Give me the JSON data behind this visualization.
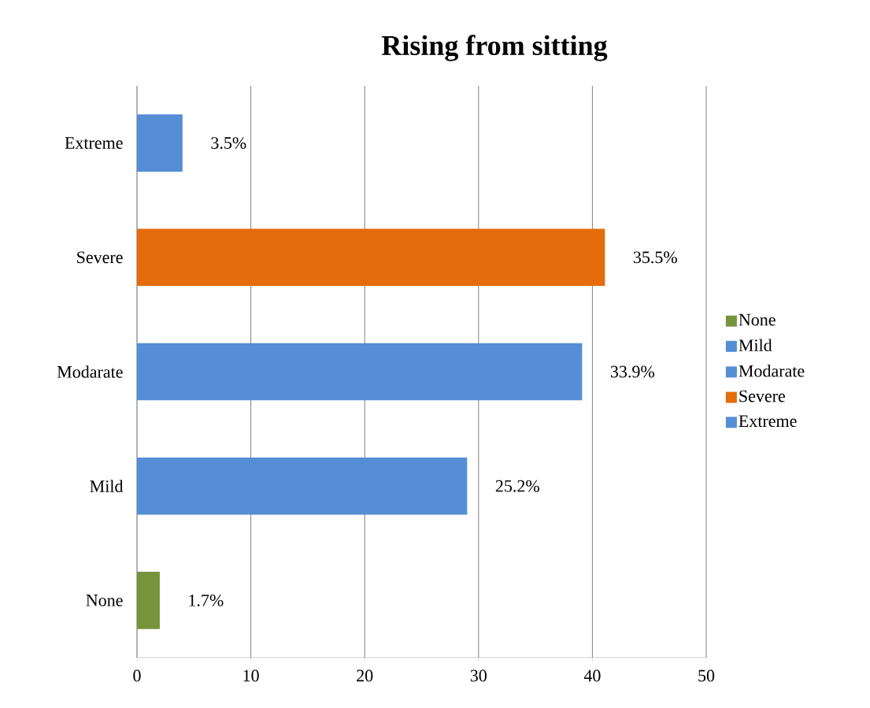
{
  "chart_data": {
    "type": "bar",
    "orientation": "horizontal",
    "title": "Rising from sitting",
    "categories": [
      "Extreme",
      "Severe",
      "Modarate",
      "Mild",
      "None"
    ],
    "series": [
      {
        "name": "None",
        "color": "#77933c",
        "values": [
          null,
          null,
          null,
          null,
          2.0
        ]
      },
      {
        "name": "Mild",
        "color": "#558ed5",
        "values": [
          null,
          null,
          null,
          29.0,
          null
        ]
      },
      {
        "name": "Modarate",
        "color": "#558ed5",
        "values": [
          null,
          null,
          39.1,
          null,
          null
        ]
      },
      {
        "name": "Severe",
        "color": "#e46c0a",
        "values": [
          null,
          41.1,
          null,
          null,
          null
        ]
      },
      {
        "name": "Extreme",
        "color": "#558ed5",
        "values": [
          4.0,
          null,
          null,
          null,
          null
        ]
      }
    ],
    "annotations": [
      {
        "text": "3.5%",
        "x": 4.0,
        "y": "Extreme"
      },
      {
        "text": "35.5%",
        "x": 41.1,
        "y": "Severe"
      },
      {
        "text": "33.9%",
        "x": 39.1,
        "y": "Modarate"
      },
      {
        "text": "25.2%",
        "x": 29.0,
        "y": "Mild"
      },
      {
        "text": "1.7%",
        "x": 2.0,
        "y": "None"
      }
    ],
    "xlim": [
      0,
      50
    ],
    "xticks": [
      0,
      10,
      20,
      30,
      40,
      50
    ],
    "grid": "x",
    "legend": "right"
  }
}
